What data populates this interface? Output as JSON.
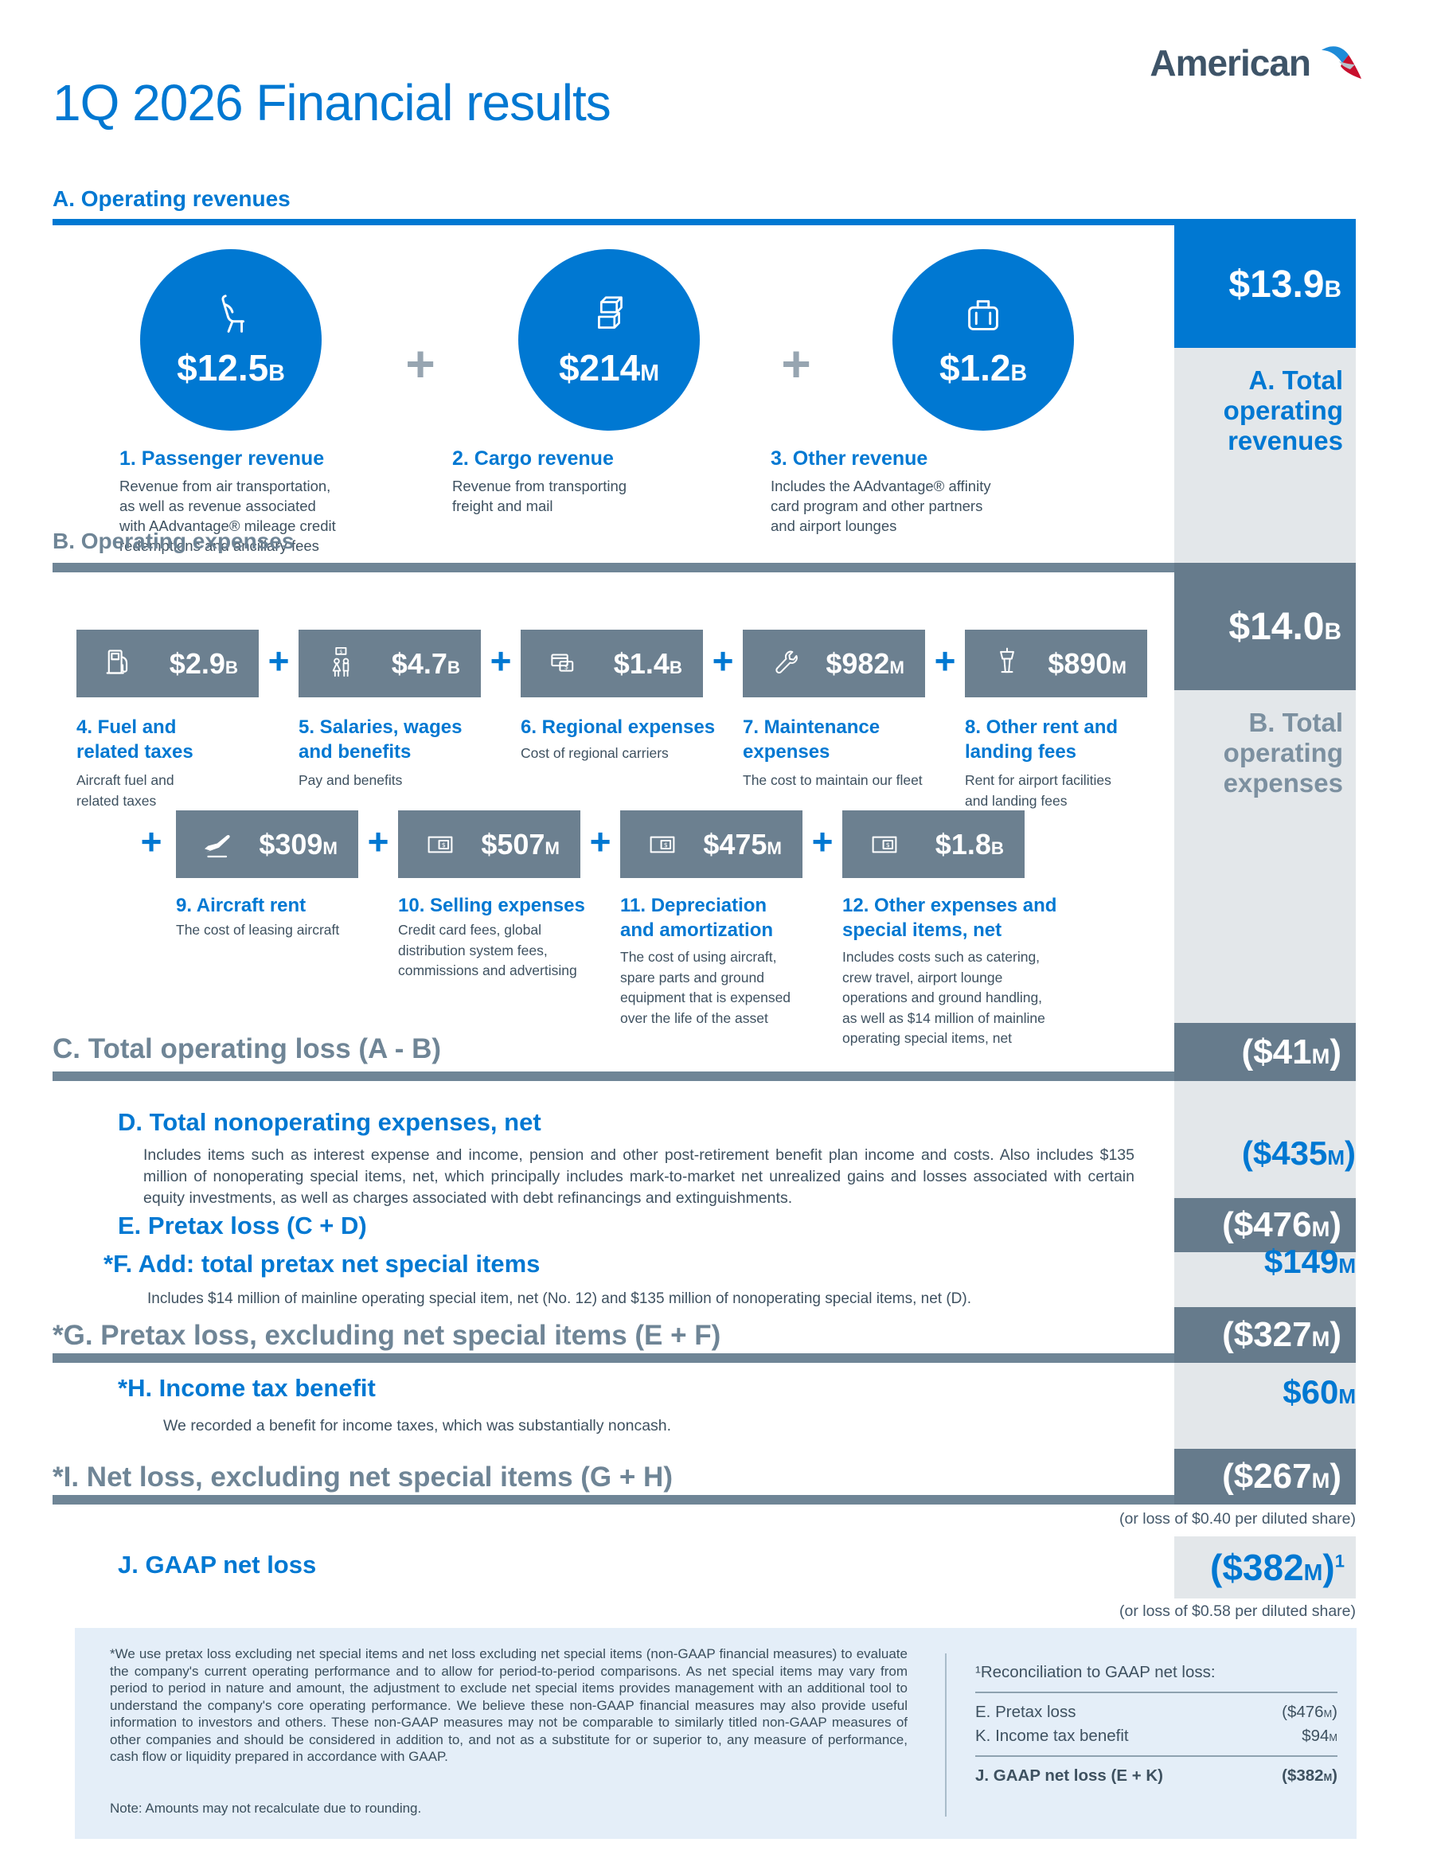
{
  "logo": {
    "text": "American"
  },
  "title": "1Q 2026 Financial results",
  "plus": "+",
  "revenues": {
    "heading": "A. Operating revenues",
    "items": [
      {
        "icon": "seat-icon",
        "value": "$12.5B",
        "label": "1. Passenger revenue",
        "desc": "Revenue from air transportation,\nas well as revenue associated\nwith AAdvantage® mileage credit\nredemptions and ancillary fees"
      },
      {
        "icon": "cargo-boxes-icon",
        "value": "$214M",
        "label": "2. Cargo revenue",
        "desc": "Revenue from transporting\nfreight and mail"
      },
      {
        "icon": "suitcase-icon",
        "value": "$1.2B",
        "label": "3. Other revenue",
        "desc": "Includes the AAdvantage® affinity\ncard program and other partners\nand airport lounges"
      }
    ],
    "total": {
      "value": "$13.9B",
      "label": "A. Total\noperating\nrevenues"
    }
  },
  "expenses": {
    "heading": "B. Operating expenses",
    "row1": [
      {
        "icon": "fuel-pump-icon",
        "value": "$2.9B",
        "label": "4. Fuel and\nrelated taxes",
        "desc": "Aircraft fuel and\nrelated taxes"
      },
      {
        "icon": "people-salary-icon",
        "value": "$4.7B",
        "label": "5. Salaries, wages\nand benefits",
        "desc": "Pay and benefits"
      },
      {
        "icon": "payment-card-icon",
        "value": "$1.4B",
        "label": "6. Regional expenses",
        "desc": "Cost of regional carriers"
      },
      {
        "icon": "wrench-icon",
        "value": "$982M",
        "label": "7. Maintenance\nexpenses",
        "desc": "The cost to maintain our fleet"
      },
      {
        "icon": "airport-tower-icon",
        "value": "$890M",
        "label": "8. Other rent and\nlanding fees",
        "desc": "Rent for airport facilities\nand landing fees"
      }
    ],
    "row2": [
      {
        "icon": "airplane-icon",
        "value": "$309M",
        "label": "9. Aircraft rent",
        "desc": "The cost of leasing aircraft"
      },
      {
        "icon": "dollar-bill-icon",
        "value": "$507M",
        "label": "10. Selling expenses",
        "desc": "Credit card fees, global\ndistribution system fees,\ncommissions and advertising"
      },
      {
        "icon": "dollar-bill-icon",
        "value": "$475M",
        "label": "11. Depreciation\nand amortization",
        "desc": "The cost of using aircraft,\nspare parts and ground\nequipment that is expensed\nover the life of the asset"
      },
      {
        "icon": "dollar-bill-icon",
        "value": "$1.8B",
        "label": "12. Other expenses and\nspecial items, net",
        "desc": "Includes costs such as catering,\ncrew travel, airport lounge\noperations and ground handling,\nas well as $14 million of mainline\noperating special items, net"
      }
    ],
    "total": {
      "value": "$14.0B",
      "label": "B. Total\noperating\nexpenses"
    }
  },
  "summary": {
    "c": {
      "label": "C. Total operating loss (A - B)",
      "value": "($41M)"
    },
    "d": {
      "label": "D. Total nonoperating expenses, net",
      "value": "($435M)",
      "desc": "Includes items such as interest expense and income, pension and other post-retirement benefit plan income and costs. Also includes $135 million of nonoperating special items, net, which principally includes mark-to-market net unrealized gains and losses associated with certain equity investments, as well as charges associated with debt refinancings and extinguishments."
    },
    "e": {
      "label": "E. Pretax loss (C + D)",
      "value": "($476M)"
    },
    "f": {
      "label": "*F. Add: total pretax net special items",
      "value": "$149M",
      "desc": "Includes $14 million of mainline operating special item, net (No. 12) and $135 million of nonoperating special items, net (D)."
    },
    "g": {
      "label": "*G. Pretax loss, excluding net special items (E + F)",
      "value": "($327M)"
    },
    "h": {
      "label": "*H. Income tax benefit",
      "value": "$60M",
      "desc": "We recorded a benefit for income taxes, which was substantially noncash."
    },
    "i": {
      "label": "*I. Net loss, excluding net special items (G + H)",
      "value": "($267M)",
      "note": "(or loss of $0.40 per diluted share)"
    },
    "j": {
      "label": "J. GAAP net loss",
      "value": "($382M)",
      "sup": "1",
      "note": "(or loss of $0.58 per diluted share)"
    }
  },
  "footer": {
    "footnote": "*We use pretax loss excluding net special items and net loss excluding net special items (non-GAAP financial measures) to evaluate the company's current operating performance and to allow for period-to-period comparisons. As net special items may vary from period to period in nature and amount, the adjustment to exclude net special items provides management with an additional tool to understand the company's core operating performance. We believe these non-GAAP financial measures may also provide useful information to investors and others. These non-GAAP measures may not be comparable to similarly titled non-GAAP measures of other companies and should be considered in addition to, and not as a substitute for or superior to, any measure of performance, cash flow or liquidity prepared in accordance with GAAP.",
    "note": "Note: Amounts may not recalculate due to rounding.",
    "reconciliation": {
      "heading": "¹Reconciliation to GAAP net loss:",
      "rows": [
        {
          "label": "E. Pretax loss",
          "value": "($476M)"
        },
        {
          "label": "K. Income tax benefit",
          "value": "$94M"
        },
        {
          "label": "J. GAAP net loss (E + K)",
          "value": "($382M)"
        }
      ]
    }
  }
}
